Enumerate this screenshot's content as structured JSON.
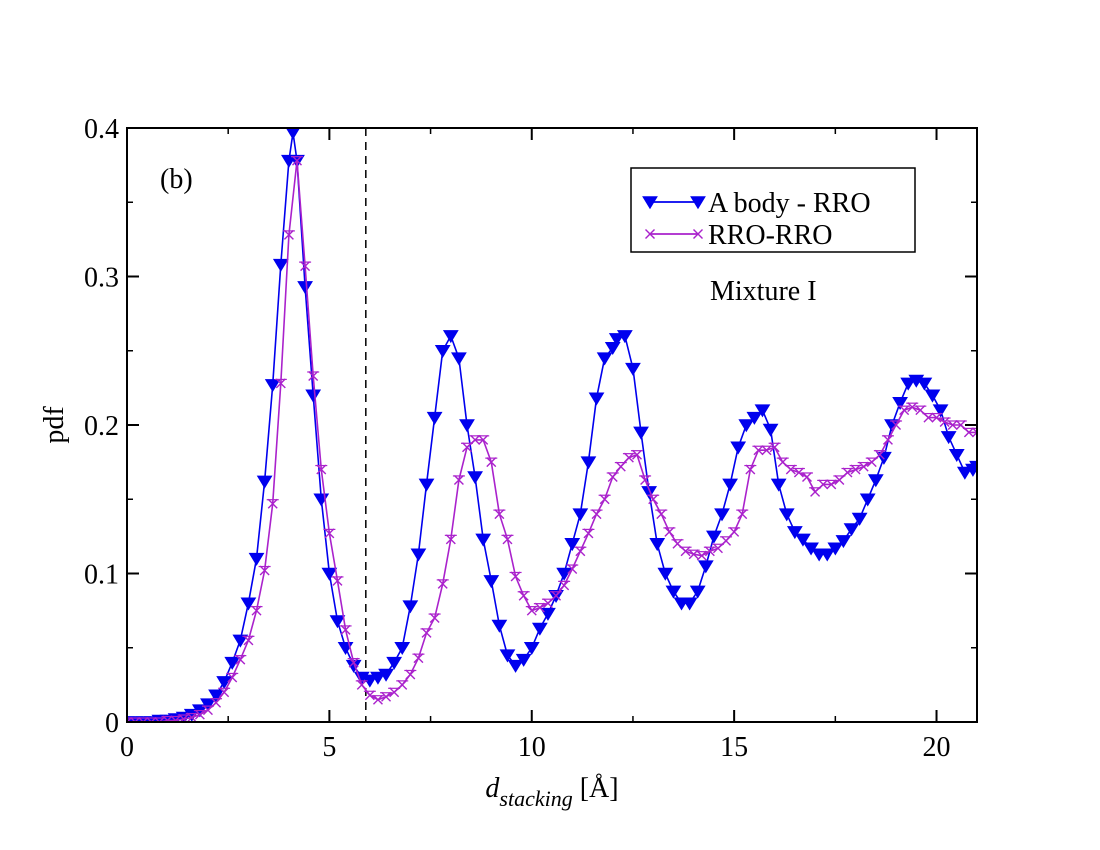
{
  "chart_data": {
    "type": "line",
    "panel_label": "(b)",
    "annotation": "Mixture I",
    "xlabel": {
      "main": "d",
      "sub": "stacking",
      "unit": " [Å]"
    },
    "ylabel": "pdf",
    "xlim": [
      0,
      21
    ],
    "ylim": [
      0,
      0.4
    ],
    "x_ticks": [
      0,
      5,
      10,
      15,
      20
    ],
    "x_tick_labels": [
      "0",
      "5",
      "10",
      "15",
      "20"
    ],
    "y_ticks": [
      0,
      0.1,
      0.2,
      0.3,
      0.4
    ],
    "y_tick_labels": [
      "0",
      "0.1",
      "0.2",
      "0.3",
      "0.4"
    ],
    "vline_x": 5.9,
    "legend_position": "top-right",
    "grid": false,
    "series": [
      {
        "name": "A body - RRO",
        "color": "#0000ee",
        "marker": "triangle-down",
        "points": [
          [
            0.0,
            0.0
          ],
          [
            0.2,
            0.0
          ],
          [
            0.4,
            0.0
          ],
          [
            0.6,
            0.0
          ],
          [
            0.8,
            0.001
          ],
          [
            1.0,
            0.001
          ],
          [
            1.2,
            0.002
          ],
          [
            1.4,
            0.003
          ],
          [
            1.6,
            0.005
          ],
          [
            1.8,
            0.008
          ],
          [
            2.0,
            0.012
          ],
          [
            2.2,
            0.018
          ],
          [
            2.4,
            0.027
          ],
          [
            2.6,
            0.04
          ],
          [
            2.8,
            0.055
          ],
          [
            3.0,
            0.08
          ],
          [
            3.2,
            0.11
          ],
          [
            3.4,
            0.162
          ],
          [
            3.6,
            0.227
          ],
          [
            3.8,
            0.308
          ],
          [
            4.0,
            0.378
          ],
          [
            4.1,
            0.397
          ],
          [
            4.2,
            0.378
          ],
          [
            4.4,
            0.293
          ],
          [
            4.6,
            0.22
          ],
          [
            4.8,
            0.15
          ],
          [
            5.0,
            0.1
          ],
          [
            5.2,
            0.068
          ],
          [
            5.4,
            0.05
          ],
          [
            5.6,
            0.038
          ],
          [
            5.8,
            0.03
          ],
          [
            6.0,
            0.028
          ],
          [
            6.2,
            0.03
          ],
          [
            6.4,
            0.032
          ],
          [
            6.6,
            0.04
          ],
          [
            6.8,
            0.05
          ],
          [
            7.0,
            0.078
          ],
          [
            7.2,
            0.113
          ],
          [
            7.4,
            0.16
          ],
          [
            7.6,
            0.205
          ],
          [
            7.8,
            0.25
          ],
          [
            8.0,
            0.26
          ],
          [
            8.2,
            0.245
          ],
          [
            8.4,
            0.2
          ],
          [
            8.6,
            0.165
          ],
          [
            8.8,
            0.123
          ],
          [
            9.0,
            0.095
          ],
          [
            9.2,
            0.065
          ],
          [
            9.4,
            0.045
          ],
          [
            9.6,
            0.038
          ],
          [
            9.8,
            0.042
          ],
          [
            10.0,
            0.05
          ],
          [
            10.2,
            0.063
          ],
          [
            10.4,
            0.073
          ],
          [
            10.6,
            0.085
          ],
          [
            10.8,
            0.1
          ],
          [
            11.0,
            0.12
          ],
          [
            11.2,
            0.14
          ],
          [
            11.4,
            0.175
          ],
          [
            11.6,
            0.218
          ],
          [
            11.8,
            0.245
          ],
          [
            12.0,
            0.252
          ],
          [
            12.1,
            0.258
          ],
          [
            12.3,
            0.26
          ],
          [
            12.5,
            0.238
          ],
          [
            12.7,
            0.195
          ],
          [
            12.9,
            0.155
          ],
          [
            13.1,
            0.12
          ],
          [
            13.3,
            0.1
          ],
          [
            13.5,
            0.088
          ],
          [
            13.7,
            0.08
          ],
          [
            13.9,
            0.08
          ],
          [
            14.1,
            0.088
          ],
          [
            14.3,
            0.105
          ],
          [
            14.5,
            0.125
          ],
          [
            14.7,
            0.14
          ],
          [
            14.9,
            0.16
          ],
          [
            15.1,
            0.185
          ],
          [
            15.3,
            0.2
          ],
          [
            15.5,
            0.205
          ],
          [
            15.7,
            0.21
          ],
          [
            15.9,
            0.197
          ],
          [
            16.1,
            0.16
          ],
          [
            16.3,
            0.14
          ],
          [
            16.5,
            0.128
          ],
          [
            16.7,
            0.123
          ],
          [
            16.9,
            0.117
          ],
          [
            17.1,
            0.113
          ],
          [
            17.3,
            0.113
          ],
          [
            17.5,
            0.117
          ],
          [
            17.7,
            0.122
          ],
          [
            17.9,
            0.13
          ],
          [
            18.1,
            0.137
          ],
          [
            18.3,
            0.15
          ],
          [
            18.5,
            0.163
          ],
          [
            18.7,
            0.178
          ],
          [
            18.9,
            0.2
          ],
          [
            19.1,
            0.215
          ],
          [
            19.3,
            0.228
          ],
          [
            19.5,
            0.23
          ],
          [
            19.7,
            0.228
          ],
          [
            19.9,
            0.22
          ],
          [
            20.1,
            0.21
          ],
          [
            20.3,
            0.192
          ],
          [
            20.5,
            0.18
          ],
          [
            20.7,
            0.168
          ],
          [
            20.9,
            0.17
          ],
          [
            21.0,
            0.172
          ]
        ]
      },
      {
        "name": "RRO-RRO",
        "color": "#aa22cc",
        "marker": "x",
        "points": [
          [
            0.0,
            0.0
          ],
          [
            0.2,
            0.0
          ],
          [
            0.4,
            0.0
          ],
          [
            0.6,
            0.0
          ],
          [
            0.8,
            0.0
          ],
          [
            1.0,
            0.001
          ],
          [
            1.2,
            0.001
          ],
          [
            1.4,
            0.002
          ],
          [
            1.6,
            0.003
          ],
          [
            1.8,
            0.005
          ],
          [
            2.0,
            0.008
          ],
          [
            2.2,
            0.013
          ],
          [
            2.4,
            0.02
          ],
          [
            2.6,
            0.03
          ],
          [
            2.8,
            0.042
          ],
          [
            3.0,
            0.055
          ],
          [
            3.2,
            0.075
          ],
          [
            3.4,
            0.102
          ],
          [
            3.6,
            0.147
          ],
          [
            3.8,
            0.228
          ],
          [
            4.0,
            0.328
          ],
          [
            4.2,
            0.378
          ],
          [
            4.4,
            0.307
          ],
          [
            4.6,
            0.233
          ],
          [
            4.8,
            0.17
          ],
          [
            5.0,
            0.127
          ],
          [
            5.2,
            0.095
          ],
          [
            5.4,
            0.062
          ],
          [
            5.6,
            0.04
          ],
          [
            5.8,
            0.025
          ],
          [
            6.0,
            0.018
          ],
          [
            6.2,
            0.015
          ],
          [
            6.4,
            0.017
          ],
          [
            6.6,
            0.02
          ],
          [
            6.8,
            0.025
          ],
          [
            7.0,
            0.032
          ],
          [
            7.2,
            0.043
          ],
          [
            7.4,
            0.06
          ],
          [
            7.6,
            0.07
          ],
          [
            7.8,
            0.093
          ],
          [
            8.0,
            0.123
          ],
          [
            8.2,
            0.163
          ],
          [
            8.4,
            0.185
          ],
          [
            8.6,
            0.19
          ],
          [
            8.8,
            0.19
          ],
          [
            9.0,
            0.175
          ],
          [
            9.2,
            0.14
          ],
          [
            9.4,
            0.123
          ],
          [
            9.6,
            0.098
          ],
          [
            9.8,
            0.085
          ],
          [
            10.0,
            0.075
          ],
          [
            10.2,
            0.077
          ],
          [
            10.4,
            0.08
          ],
          [
            10.6,
            0.085
          ],
          [
            10.8,
            0.092
          ],
          [
            11.0,
            0.103
          ],
          [
            11.2,
            0.115
          ],
          [
            11.4,
            0.127
          ],
          [
            11.6,
            0.14
          ],
          [
            11.8,
            0.15
          ],
          [
            12.0,
            0.165
          ],
          [
            12.2,
            0.172
          ],
          [
            12.4,
            0.178
          ],
          [
            12.6,
            0.18
          ],
          [
            12.8,
            0.163
          ],
          [
            13.0,
            0.15
          ],
          [
            13.2,
            0.14
          ],
          [
            13.4,
            0.128
          ],
          [
            13.6,
            0.12
          ],
          [
            13.8,
            0.115
          ],
          [
            14.0,
            0.113
          ],
          [
            14.2,
            0.112
          ],
          [
            14.4,
            0.115
          ],
          [
            14.6,
            0.117
          ],
          [
            14.8,
            0.122
          ],
          [
            15.0,
            0.128
          ],
          [
            15.2,
            0.14
          ],
          [
            15.4,
            0.17
          ],
          [
            15.6,
            0.183
          ],
          [
            15.8,
            0.183
          ],
          [
            16.0,
            0.185
          ],
          [
            16.2,
            0.175
          ],
          [
            16.4,
            0.17
          ],
          [
            16.6,
            0.168
          ],
          [
            16.8,
            0.165
          ],
          [
            17.0,
            0.155
          ],
          [
            17.2,
            0.16
          ],
          [
            17.4,
            0.16
          ],
          [
            17.6,
            0.163
          ],
          [
            17.8,
            0.168
          ],
          [
            18.0,
            0.17
          ],
          [
            18.2,
            0.172
          ],
          [
            18.4,
            0.175
          ],
          [
            18.6,
            0.18
          ],
          [
            18.8,
            0.19
          ],
          [
            19.0,
            0.2
          ],
          [
            19.2,
            0.21
          ],
          [
            19.4,
            0.212
          ],
          [
            19.6,
            0.21
          ],
          [
            19.8,
            0.205
          ],
          [
            20.0,
            0.205
          ],
          [
            20.2,
            0.202
          ],
          [
            20.4,
            0.2
          ],
          [
            20.6,
            0.2
          ],
          [
            20.8,
            0.195
          ],
          [
            21.0,
            0.195
          ]
        ]
      }
    ]
  }
}
